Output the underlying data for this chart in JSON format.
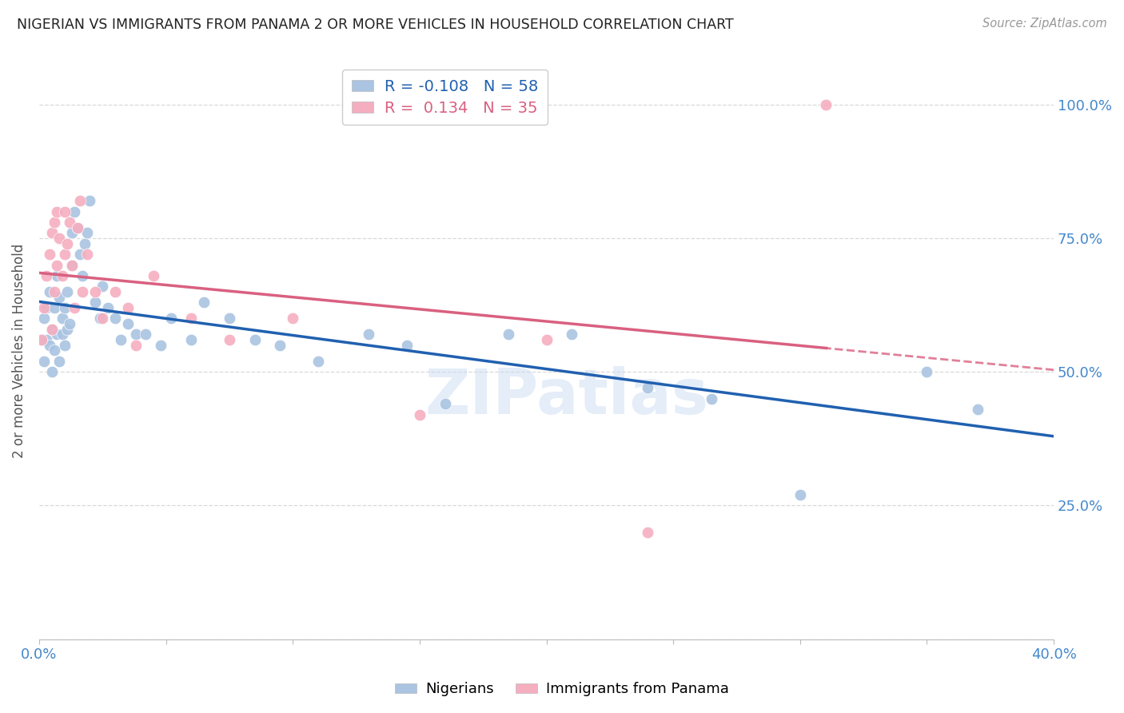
{
  "title": "NIGERIAN VS IMMIGRANTS FROM PANAMA 2 OR MORE VEHICLES IN HOUSEHOLD CORRELATION CHART",
  "source": "Source: ZipAtlas.com",
  "ylabel": "2 or more Vehicles in Household",
  "x_min": 0.0,
  "x_max": 0.4,
  "y_min": 0.0,
  "y_max": 1.08,
  "nigerian_R": -0.108,
  "nigerian_N": 58,
  "panama_R": 0.134,
  "panama_N": 35,
  "nigerian_color": "#aac4e2",
  "panama_color": "#f5aec0",
  "nigerian_line_color": "#2060b0",
  "panama_line_color": "#d96080",
  "watermark": "ZIPatlas",
  "nigerian_x": [
    0.001,
    0.002,
    0.002,
    0.003,
    0.003,
    0.004,
    0.004,
    0.005,
    0.005,
    0.006,
    0.006,
    0.007,
    0.007,
    0.008,
    0.008,
    0.009,
    0.009,
    0.01,
    0.01,
    0.011,
    0.011,
    0.012,
    0.013,
    0.013,
    0.014,
    0.015,
    0.016,
    0.017,
    0.018,
    0.019,
    0.02,
    0.022,
    0.024,
    0.025,
    0.027,
    0.03,
    0.032,
    0.035,
    0.038,
    0.042,
    0.048,
    0.052,
    0.06,
    0.065,
    0.075,
    0.085,
    0.095,
    0.11,
    0.13,
    0.145,
    0.16,
    0.185,
    0.21,
    0.24,
    0.265,
    0.3,
    0.35,
    0.37
  ],
  "nigerian_y": [
    0.56,
    0.52,
    0.6,
    0.56,
    0.62,
    0.55,
    0.65,
    0.5,
    0.58,
    0.54,
    0.62,
    0.57,
    0.68,
    0.52,
    0.64,
    0.57,
    0.6,
    0.55,
    0.62,
    0.58,
    0.65,
    0.59,
    0.7,
    0.76,
    0.8,
    0.77,
    0.72,
    0.68,
    0.74,
    0.76,
    0.82,
    0.63,
    0.6,
    0.66,
    0.62,
    0.6,
    0.56,
    0.59,
    0.57,
    0.57,
    0.55,
    0.6,
    0.56,
    0.63,
    0.6,
    0.56,
    0.55,
    0.52,
    0.57,
    0.55,
    0.44,
    0.57,
    0.57,
    0.47,
    0.45,
    0.27,
    0.5,
    0.43
  ],
  "panama_x": [
    0.001,
    0.002,
    0.003,
    0.004,
    0.005,
    0.005,
    0.006,
    0.006,
    0.007,
    0.007,
    0.008,
    0.009,
    0.01,
    0.01,
    0.011,
    0.012,
    0.013,
    0.014,
    0.015,
    0.016,
    0.017,
    0.019,
    0.022,
    0.025,
    0.03,
    0.035,
    0.038,
    0.045,
    0.06,
    0.075,
    0.1,
    0.15,
    0.2,
    0.24,
    0.31
  ],
  "panama_y": [
    0.56,
    0.62,
    0.68,
    0.72,
    0.58,
    0.76,
    0.78,
    0.65,
    0.8,
    0.7,
    0.75,
    0.68,
    0.72,
    0.8,
    0.74,
    0.78,
    0.7,
    0.62,
    0.77,
    0.82,
    0.65,
    0.72,
    0.65,
    0.6,
    0.65,
    0.62,
    0.55,
    0.68,
    0.6,
    0.56,
    0.6,
    0.42,
    0.56,
    0.2,
    1.0
  ]
}
